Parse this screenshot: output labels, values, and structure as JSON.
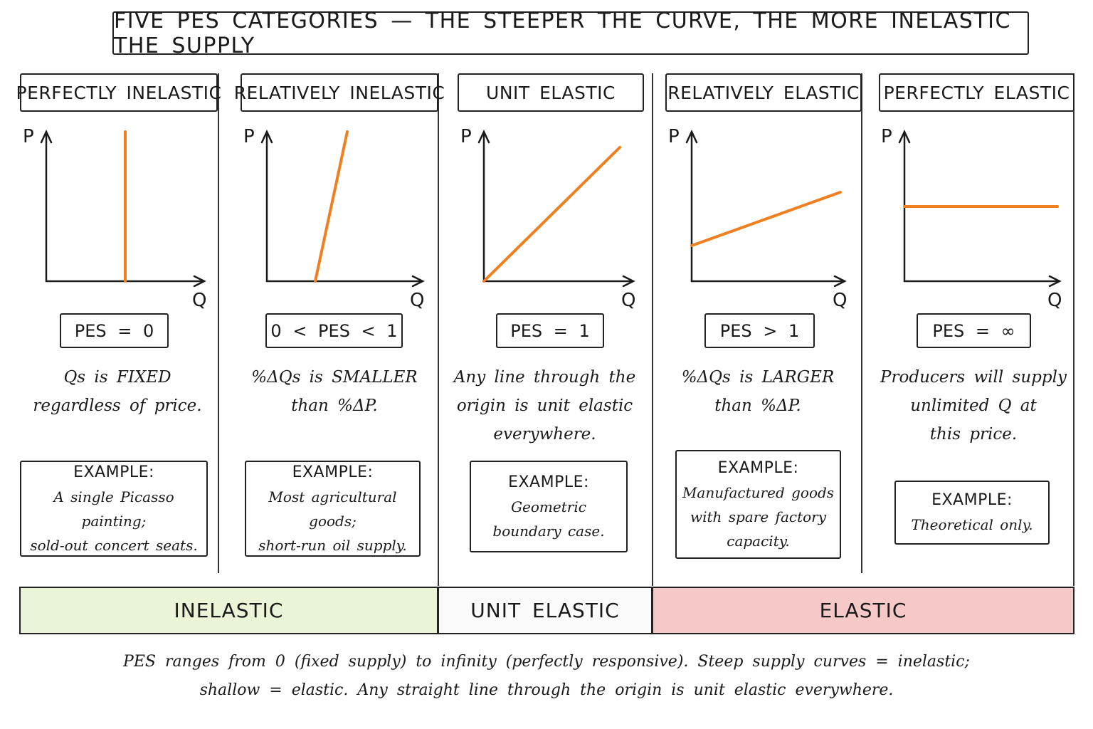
{
  "title": "FIVE PES CATEGORIES — THE STEEPER THE CURVE, THE MORE INELASTIC THE SUPPLY",
  "axis_labels": {
    "price": "P",
    "quantity": "Q"
  },
  "curve_color": "#f07f1f",
  "categories": [
    {
      "name": "PERFECTLY INELASTIC",
      "pes": "PES = 0",
      "desc_lines": [
        "Qs is FIXED",
        "regardless of price."
      ],
      "example_title": "EXAMPLE:",
      "example_lines": [
        "A single Picasso painting;",
        "sold-out concert seats."
      ]
    },
    {
      "name": "RELATIVELY INELASTIC",
      "pes": "0 < PES < 1",
      "desc_lines": [
        "%ΔQs is SMALLER",
        "than %ΔP."
      ],
      "example_title": "EXAMPLE:",
      "example_lines": [
        "Most agricultural goods;",
        "short-run oil supply."
      ]
    },
    {
      "name": "UNIT ELASTIC",
      "pes": "PES = 1",
      "desc_lines": [
        "Any line through the",
        "origin is unit elastic",
        "everywhere."
      ],
      "example_title": "EXAMPLE:",
      "example_lines": [
        "Geometric",
        "boundary case."
      ]
    },
    {
      "name": "RELATIVELY ELASTIC",
      "pes": "PES > 1",
      "desc_lines": [
        "%ΔQs is LARGER",
        "than %ΔP."
      ],
      "example_title": "EXAMPLE:",
      "example_lines": [
        "Manufactured goods",
        "with spare factory",
        "capacity."
      ]
    },
    {
      "name": "PERFECTLY ELASTIC",
      "pes": "PES = ∞",
      "desc_lines": [
        "Producers will supply",
        "unlimited Q at",
        "this price."
      ],
      "example_title": "EXAMPLE:",
      "example_lines": [
        "Theoretical only."
      ]
    }
  ],
  "bands": [
    {
      "label": "INELASTIC",
      "color": "#e9f5d6"
    },
    {
      "label": "UNIT ELASTIC",
      "color": "#fafafa"
    },
    {
      "label": "ELASTIC",
      "color": "#f6c9c9"
    }
  ],
  "footer_lines": [
    "PES ranges from 0 (fixed supply) to infinity (perfectly responsive). Steep supply curves = inelastic;",
    "shallow = elastic. Any straight line through the origin is unit elastic everywhere."
  ]
}
